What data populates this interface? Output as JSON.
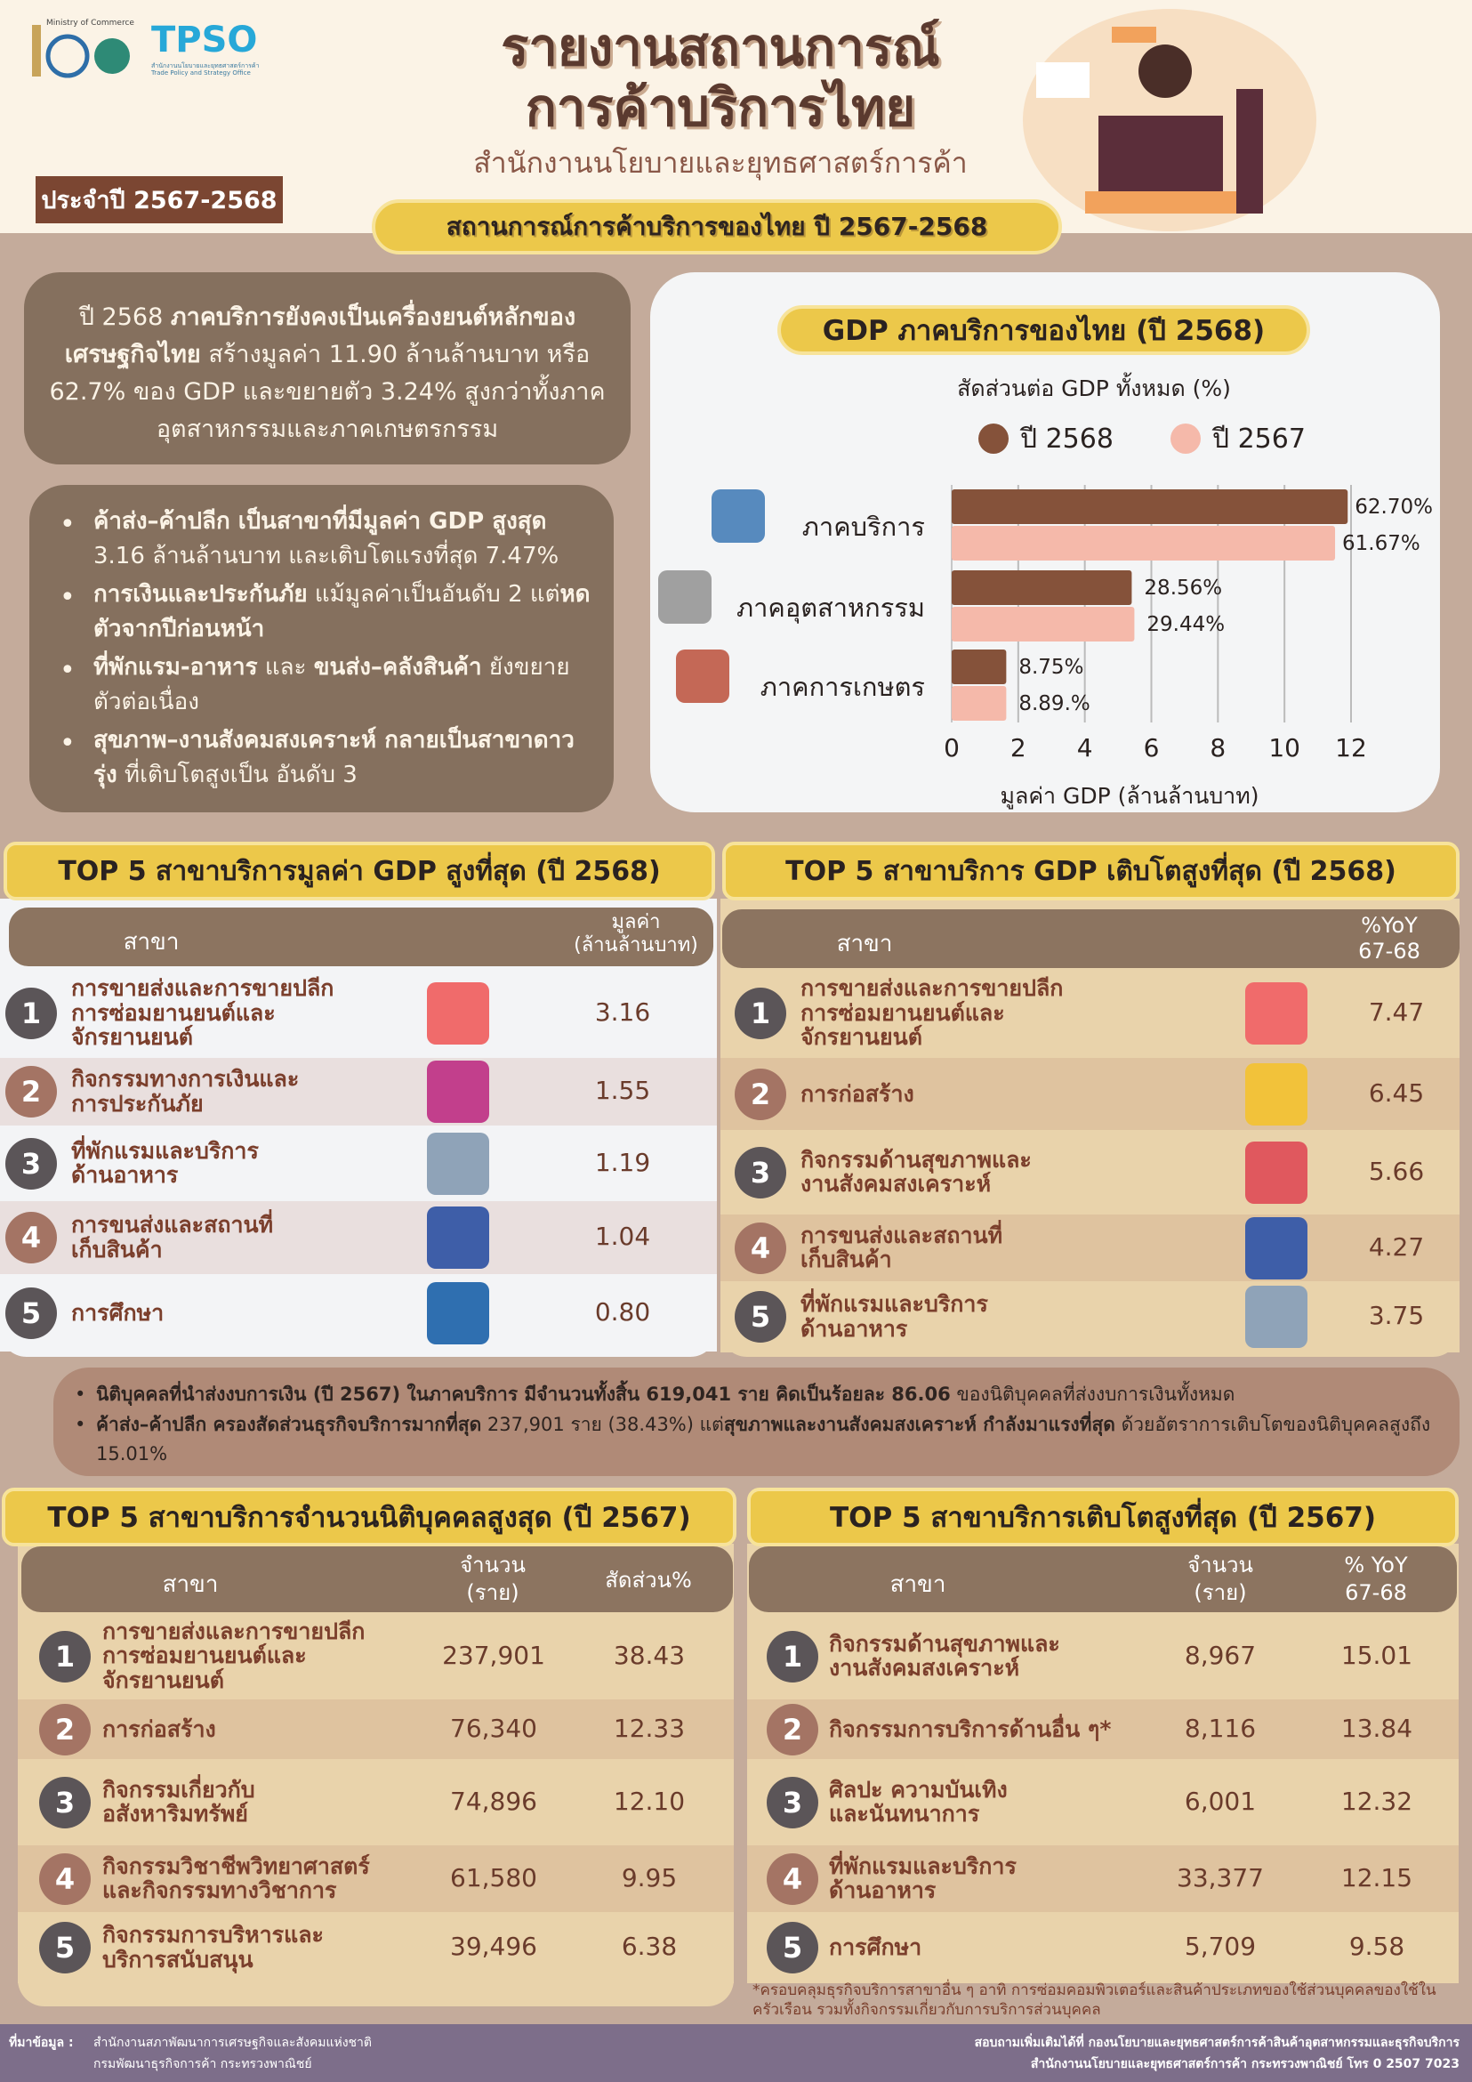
{
  "header": {
    "ministry_logo": "กระทรวงพาณิชย์ Ministry of Commerce 105th",
    "tpso_logo": "TPSO",
    "tpso_sub": "สำนักงานนโยบายและยุทธศาสตร์การค้า Trade Policy and Strategy Office",
    "title_line1": "รายงานสถานการณ์",
    "title_line2": "การค้าบริการไทย",
    "subtitle": "สำนักงานนโยบายและยุทธศาสตร์การค้า",
    "year_badge": "ประจำปี 2567-2568",
    "section_title": "สถานการณ์การค้าบริการของไทย ปี 2567-2568"
  },
  "summary": {
    "paragraph": [
      {
        "t": "ปี 2568 ",
        "b": false
      },
      {
        "t": "ภาคบริการยังคงเป็นเครื่องยนต์หลักของเศรษฐกิจไทย",
        "b": true
      },
      {
        "t": " สร้างมูลค่า 11.90 ล้านล้านบาท หรือ 62.7% ของ GDP และขยายตัว 3.24% สูงกว่าทั้งภาคอุตสาหกรรมและภาคเกษตรกรรม",
        "b": false
      }
    ],
    "bullets": [
      [
        {
          "t": "ค้าส่ง–ค้าปลีก เป็นสาขาที่มีมูลค่า GDP สูงสุด",
          "b": true
        },
        {
          "t": " 3.16 ล้านล้านบาท และเติบโตแรงที่สุด 7.47%",
          "b": false
        }
      ],
      [
        {
          "t": "การเงินและประกันภัย",
          "b": true
        },
        {
          "t": " แม้มูลค่าเป็นอันดับ 2 แต่",
          "b": false
        },
        {
          "t": "หดตัวจากปีก่อนหน้า",
          "b": true
        }
      ],
      [
        {
          "t": "ที่พักแรม-อาหาร",
          "b": true
        },
        {
          "t": " และ ",
          "b": false
        },
        {
          "t": "ขนส่ง–คลังสินค้า",
          "b": true
        },
        {
          "t": " ยังขยายตัวต่อเนื่อง",
          "b": false
        }
      ],
      [
        {
          "t": "สุขภาพ–งานสังคมสงเคราะห์ กลายเป็นสาขาดาวรุ่ง",
          "b": true
        },
        {
          "t": " ที่เติบโตสูงเป็น อันดับ 3",
          "b": false
        }
      ]
    ]
  },
  "chart_data": {
    "type": "bar",
    "orientation": "horizontal",
    "title": "GDP ภาคบริการของไทย (ปี 2568)",
    "subtitle": "สัดส่วนต่อ GDP ทั้งหมด (%)",
    "xlabel": "มูลค่า GDP (ล้านล้านบาท)",
    "xlim": [
      0,
      12
    ],
    "xticks": [
      "0",
      "2",
      "4",
      "6",
      "8",
      "10",
      "12"
    ],
    "grid": true,
    "legend": "top",
    "categories": [
      "ภาคบริการ",
      "ภาคอุตสาหกรรม",
      "ภาคการเกษตร"
    ],
    "series": [
      {
        "name": "ปี 2568",
        "color": "#85523a",
        "values": [
          11.9,
          5.41,
          1.64
        ],
        "labels": [
          "62.70%",
          "28.56%",
          "8.75%"
        ]
      },
      {
        "name": "ปี 2567",
        "color": "#f5b9aa",
        "values": [
          11.52,
          5.49,
          1.64
        ],
        "labels": [
          "61.67%",
          "29.44%",
          "8.89.%"
        ]
      }
    ]
  },
  "top_gdp": {
    "title": "TOP 5 สาขาบริการมูลค่า GDP สูงที่สุด (ปี 2568)",
    "col_branch": "สาขา",
    "col_value": "มูลค่า\n(ล้านล้านบาท)",
    "rows": [
      {
        "rank": "1",
        "name": "การขายส่งและการขายปลีก\nการซ่อมยานยนต์และ\nจักรยานยนต์",
        "value": "3.16",
        "icon": "shop-icon"
      },
      {
        "rank": "2",
        "name": "กิจกรรมทางการเงินและ\nการประกันภัย",
        "value": "1.55",
        "icon": "finance-icon"
      },
      {
        "rank": "3",
        "name": "ที่พักแรมและบริการ\nด้านอาหาร",
        "value": "1.19",
        "icon": "hotel-icon"
      },
      {
        "rank": "4",
        "name": "การขนส่งและสถานที่\nเก็บสินค้า",
        "value": "1.04",
        "icon": "truck-warehouse-icon"
      },
      {
        "rank": "5",
        "name": "การศึกษา",
        "value": "0.80",
        "icon": "education-icon"
      }
    ]
  },
  "top_growth": {
    "title": "TOP 5 สาขาบริการ GDP เติบโตสูงที่สุด (ปี 2568)",
    "col_branch": "สาขา",
    "col_value": "%YoY\n67-68",
    "rows": [
      {
        "rank": "1",
        "name": "การขายส่งและการขายปลีก\nการซ่อมยานยนต์และ\nจักรยานยนต์",
        "value": "7.47",
        "icon": "shop-icon"
      },
      {
        "rank": "2",
        "name": "การก่อสร้าง",
        "value": "6.45",
        "icon": "helmet-icon"
      },
      {
        "rank": "3",
        "name": "กิจกรรมด้านสุขภาพและ\nงานสังคมสงเคราะห์",
        "value": "5.66",
        "icon": "heart-icon"
      },
      {
        "rank": "4",
        "name": "การขนส่งและสถานที่\nเก็บสินค้า",
        "value": "4.27",
        "icon": "truck-warehouse-icon"
      },
      {
        "rank": "5",
        "name": "ที่พักแรมและบริการ\nด้านอาหาร",
        "value": "3.75",
        "icon": "hotel-icon"
      }
    ]
  },
  "note": {
    "bullets": [
      [
        {
          "t": "นิติบุคคลที่นำส่งงบการเงิน (ปี 2567) ในภาคบริการ มีจำนวนทั้งสิ้น 619,041 ราย คิดเป็นร้อยละ 86.06",
          "b": true
        },
        {
          "t": " ของนิติบุคคลที่ส่งงบการเงินทั้งหมด",
          "b": false
        }
      ],
      [
        {
          "t": "ค้าส่ง–ค้าปลีก ครองสัดส่วนธุรกิจบริการมากที่สุด",
          "b": true
        },
        {
          "t": " 237,901 ราย (38.43%) แต่",
          "b": false
        },
        {
          "t": "สุขภาพและงานสังคมสงเคราะห์ กำลังมาแรงที่สุด",
          "b": true
        },
        {
          "t": " ด้วยอัตราการเติบโตของนิติบุคคลสูงถึง 15.01%",
          "b": false
        }
      ]
    ]
  },
  "top_firms": {
    "title": "TOP 5 สาขาบริการจำนวนนิติบุคคลสูงสุด (ปี 2567)",
    "col_branch": "สาขา",
    "col_count": "จำนวน\n(ราย)",
    "col_share": "สัดส่วน%",
    "rows": [
      {
        "rank": "1",
        "name": "การขายส่งและการขายปลีก\nการซ่อมยานยนต์และ\nจักรยานยนต์",
        "count": "237,901",
        "share": "38.43"
      },
      {
        "rank": "2",
        "name": "การก่อสร้าง",
        "count": "76,340",
        "share": "12.33"
      },
      {
        "rank": "3",
        "name": "กิจกรรมเกี่ยวกับ\nอสังหาริมทรัพย์",
        "count": "74,896",
        "share": "12.10"
      },
      {
        "rank": "4",
        "name": "กิจกรรมวิชาชีพวิทยาศาสตร์\nและกิจกรรมทางวิชาการ",
        "count": "61,580",
        "share": "9.95"
      },
      {
        "rank": "5",
        "name": "กิจกรรมการบริหารและ\nบริการสนับสนุน",
        "count": "39,496",
        "share": "6.38"
      }
    ]
  },
  "top_firm_growth": {
    "title": "TOP 5 สาขาบริการเติบโตสูงที่สุด (ปี 2567)",
    "col_branch": "สาขา",
    "col_count": "จำนวน\n(ราย)",
    "col_share": "% YoY\n67-68",
    "rows": [
      {
        "rank": "1",
        "name": "กิจกรรมด้านสุขภาพและ\nงานสังคมสงเคราะห์",
        "count": "8,967",
        "share": "15.01"
      },
      {
        "rank": "2",
        "name": "กิจกรรมการบริการด้านอื่น ๆ*",
        "count": "8,116",
        "share": "13.84"
      },
      {
        "rank": "3",
        "name": "ศิลปะ ความบันเทิง\nและนันทนาการ",
        "count": "6,001",
        "share": "12.32"
      },
      {
        "rank": "4",
        "name": "ที่พักแรมและบริการ\nด้านอาหาร",
        "count": "33,377",
        "share": "12.15"
      },
      {
        "rank": "5",
        "name": "การศึกษา",
        "count": "5,709",
        "share": "9.58"
      }
    ]
  },
  "footnote": "*ครอบคลุมธุรกิจบริการสาขาอื่น ๆ อาทิ การซ่อมคอมพิวเตอร์และสินค้าประเภทของใช้ส่วนบุคคลของใช้ในครัวเรือน รวมทั้งกิจกรรมเกี่ยวกับการบริการส่วนบุคคล",
  "footer": {
    "source_label": "ที่มาข้อมูล :",
    "sources": [
      "สำนักงานสภาพัฒนาการเศรษฐกิจและสังคมแห่งชาติ",
      "กรมพัฒนาธุรกิจการค้า กระทรวงพาณิชย์"
    ],
    "contact_line1": "สอบถามเพิ่มเติมได้ที่ กองนโยบายและยุทธศาสตร์การค้าสินค้าอุตสาหกรรมและธุรกิจบริการ",
    "contact_line2": "สำนักงานนโยบายและยุทธศาสตร์การค้า กระทรวงพาณิชย์ โทร 0 2507 7023"
  },
  "colors": {
    "brown_box": "#85705e",
    "yellow": "#ecc84a",
    "bar_2568": "#85523a",
    "bar_2567": "#f5b9aa",
    "footer": "#7d6e8a"
  }
}
